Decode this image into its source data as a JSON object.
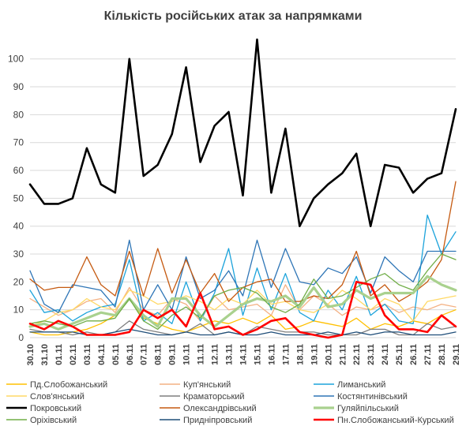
{
  "chart_data": {
    "type": "line",
    "title": "Кількість російських атак за напрямками",
    "xlabel": "",
    "ylabel": "",
    "ylim": [
      0,
      107
    ],
    "yticks": [
      0,
      10,
      20,
      30,
      40,
      50,
      60,
      70,
      80,
      90,
      100
    ],
    "grid": "horizontal",
    "legend_position": "bottom",
    "x": [
      "30.10",
      "31.10",
      "01.11",
      "02.11",
      "03.11",
      "04.11",
      "05.11",
      "06.11",
      "07.11",
      "08.11",
      "09.11",
      "10.11",
      "11.11",
      "12.11",
      "13.11",
      "14.11",
      "15.11",
      "16.11",
      "17.11",
      "18.11",
      "19.11",
      "20.11",
      "21.11",
      "22.11",
      "23.11",
      "24.11",
      "25.11",
      "26.11",
      "27.11",
      "28.11",
      "29.11"
    ],
    "x_tick_labels": [
      "30.10",
      "31.10",
      "01.11",
      "02.11",
      "03.11",
      "04.11",
      "05.11",
      "06.11",
      "07.11",
      "08.11",
      "09.11",
      "10.11",
      "11.11",
      "12.11",
      "13.11",
      "14.11",
      "15.11",
      "16.11",
      "17.11",
      "18.11",
      "19.11",
      "20.11",
      "21.11",
      "22.11",
      "23.11",
      "24.11",
      "25.11",
      "26.11",
      "27.11",
      "28.11",
      "29.11"
    ],
    "series": [
      {
        "name": "Пд.Слобожанський",
        "color": "#FFC000",
        "width": 1.3,
        "values": [
          2,
          1,
          1,
          2,
          3,
          5,
          8,
          14,
          7,
          5,
          3,
          2,
          4,
          6,
          5,
          7,
          5,
          8,
          3,
          4,
          6,
          5,
          4,
          7,
          3,
          5,
          4,
          6,
          5,
          8,
          10
        ]
      },
      {
        "name": "Куп'янський",
        "color": "#F4B183",
        "width": 1.3,
        "values": [
          14,
          11,
          8,
          10,
          13,
          14,
          9,
          18,
          10,
          8,
          14,
          12,
          6,
          15,
          10,
          11,
          12,
          8,
          19,
          10,
          15,
          12,
          8,
          11,
          10,
          12,
          9,
          11,
          10,
          12,
          11
        ]
      },
      {
        "name": "Лиманський",
        "color": "#1CA3DB",
        "width": 1.3,
        "values": [
          17,
          9,
          10,
          6,
          9,
          11,
          12,
          28,
          6,
          9,
          5,
          20,
          6,
          16,
          32,
          8,
          25,
          10,
          23,
          9,
          6,
          17,
          10,
          22,
          8,
          12,
          6,
          5,
          44,
          30,
          38
        ]
      },
      {
        "name": "Слов'янський",
        "color": "#FFD966",
        "width": 1.3,
        "values": [
          4,
          6,
          9,
          10,
          14,
          11,
          10,
          17,
          15,
          12,
          13,
          15,
          13,
          10,
          14,
          12,
          17,
          12,
          13,
          10,
          9,
          12,
          17,
          14,
          10,
          14,
          12,
          6,
          13,
          14,
          15
        ]
      },
      {
        "name": "Краматорський",
        "color": "#7F7F7F",
        "width": 1.3,
        "values": [
          3,
          2,
          2,
          1,
          2,
          1,
          2,
          6,
          3,
          2,
          1,
          2,
          5,
          1,
          2,
          1,
          4,
          3,
          2,
          2,
          2,
          1,
          1,
          1,
          3,
          3,
          1,
          1,
          5,
          3,
          4
        ]
      },
      {
        "name": "Костянтинівський",
        "color": "#2E75B6",
        "width": 1.3,
        "values": [
          24,
          12,
          9,
          19,
          18,
          17,
          11,
          35,
          10,
          19,
          10,
          29,
          14,
          17,
          24,
          15,
          35,
          18,
          32,
          20,
          19,
          25,
          23,
          29,
          16,
          29,
          24,
          20,
          31,
          31,
          31
        ]
      },
      {
        "name": "Покровський",
        "color": "#000000",
        "width": 2.6,
        "values": [
          55,
          48,
          48,
          50,
          68,
          55,
          52,
          100,
          58,
          62,
          73,
          97,
          63,
          76,
          81,
          51,
          107,
          52,
          75,
          40,
          50,
          55,
          59,
          66,
          40,
          62,
          61,
          52,
          57,
          59,
          82
        ]
      },
      {
        "name": "Олександрівський",
        "color": "#C55A11",
        "width": 1.3,
        "values": [
          21,
          17,
          18,
          18,
          29,
          19,
          15,
          31,
          15,
          32,
          16,
          28,
          16,
          23,
          13,
          18,
          20,
          21,
          13,
          13,
          15,
          14,
          19,
          31,
          15,
          19,
          13,
          16,
          20,
          28,
          56
        ]
      },
      {
        "name": "Гуляйпільський",
        "color": "#A9D18E",
        "width": 3.2,
        "values": [
          4,
          5,
          3,
          5,
          7,
          9,
          8,
          14,
          8,
          4,
          14,
          14,
          8,
          4,
          8,
          12,
          14,
          13,
          15,
          11,
          18,
          11,
          12,
          17,
          14,
          16,
          16,
          16,
          22,
          19,
          17
        ]
      },
      {
        "name": "Оріхівський",
        "color": "#70AD47",
        "width": 1.3,
        "values": [
          5,
          6,
          5,
          4,
          6,
          6,
          7,
          14,
          6,
          3,
          8,
          11,
          7,
          15,
          17,
          18,
          16,
          11,
          9,
          12,
          21,
          14,
          15,
          18,
          21,
          23,
          19,
          17,
          24,
          30,
          28
        ]
      },
      {
        "name": "Придніпровський",
        "color": "#1F4E79",
        "width": 1.3,
        "values": [
          2,
          2,
          2,
          2,
          1,
          1,
          2,
          3,
          2,
          1,
          1,
          2,
          1,
          1,
          2,
          1,
          1,
          2,
          1,
          1,
          1,
          2,
          1,
          2,
          1,
          2,
          2,
          1,
          1,
          1,
          2
        ]
      },
      {
        "name": "Пн.Слобожанський-Курський",
        "color": "#FF0000",
        "width": 2.6,
        "values": [
          5,
          3,
          6,
          4,
          1,
          1,
          1,
          2,
          10,
          7,
          10,
          4,
          16,
          3,
          4,
          1,
          3,
          6,
          7,
          2,
          1,
          0,
          1,
          20,
          19,
          8,
          3,
          3,
          2,
          8,
          4
        ]
      }
    ]
  }
}
